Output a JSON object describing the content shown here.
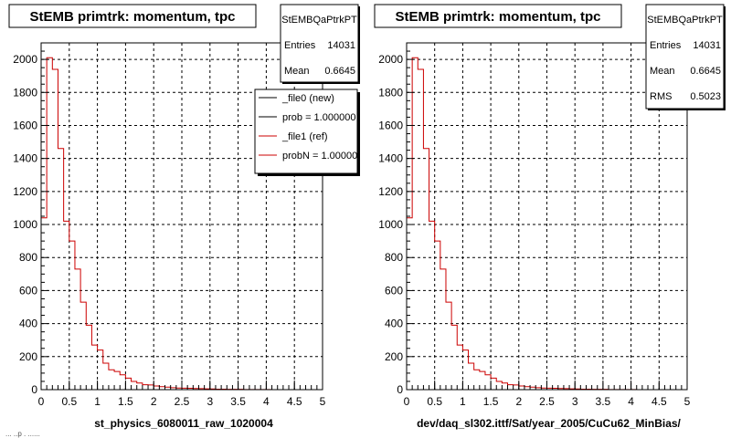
{
  "colors": {
    "hist": "#cc0000",
    "legend_line_new": "#000000",
    "legend_line_ref": "#cc0000",
    "frame": "#000000",
    "grid": "#000000",
    "stats_shadow": "#000000"
  },
  "corner_note": "... ..p . ......",
  "chart_data": [
    {
      "type": "bar",
      "title": "StEMB primtrk: momentum, tpc",
      "xlabel": "st_physics_6080011_raw_1020004",
      "ylabel": "",
      "xlim": [
        0,
        5
      ],
      "ylim": [
        0,
        2100
      ],
      "grid": true,
      "bin_width": 0.1,
      "x_ticks": [
        "0",
        "0.5",
        "1",
        "1.5",
        "2",
        "2.5",
        "3",
        "3.5",
        "4",
        "4.5",
        "5"
      ],
      "y_ticks": [
        "0",
        "200",
        "400",
        "600",
        "800",
        "1000",
        "1200",
        "1400",
        "1600",
        "1800",
        "2000"
      ],
      "values": [
        1040,
        2010,
        1940,
        1460,
        1020,
        900,
        730,
        530,
        390,
        270,
        240,
        160,
        120,
        110,
        90,
        70,
        50,
        40,
        30,
        28,
        22,
        18,
        15,
        12,
        10,
        9,
        8,
        7,
        6,
        5,
        4,
        3,
        3,
        2,
        2,
        2,
        1,
        1,
        1,
        1,
        1,
        0,
        0,
        0,
        0,
        0,
        0,
        0,
        0,
        0
      ],
      "stats": {
        "name": "StEMBQaPtrkPT",
        "entries_label": "Entries",
        "entries": "14031",
        "mean_label": "Mean",
        "mean": "0.6645"
      },
      "legend": [
        {
          "label": "_file0 (new)",
          "color": "#000000"
        },
        {
          "label": "prob = 1.000000",
          "color": "#000000"
        },
        {
          "label": "_file1 (ref)",
          "color": "#cc0000"
        },
        {
          "label": "probN = 1.000000",
          "color": "#cc0000"
        }
      ]
    },
    {
      "type": "bar",
      "title": "StEMB primtrk: momentum, tpc",
      "xlabel": "dev/daq_sl302.ittf/Sat/year_2005/CuCu62_MinBias/",
      "ylabel": "",
      "xlim": [
        0,
        5
      ],
      "ylim": [
        0,
        2100
      ],
      "grid": true,
      "bin_width": 0.1,
      "x_ticks": [
        "0",
        "0.5",
        "1",
        "1.5",
        "2",
        "2.5",
        "3",
        "3.5",
        "4",
        "4.5",
        "5"
      ],
      "y_ticks": [
        "0",
        "200",
        "400",
        "600",
        "800",
        "1000",
        "1200",
        "1400",
        "1600",
        "1800",
        "2000"
      ],
      "values": [
        1040,
        2010,
        1940,
        1460,
        1020,
        900,
        730,
        530,
        390,
        270,
        240,
        160,
        120,
        110,
        90,
        70,
        50,
        40,
        30,
        28,
        22,
        18,
        15,
        12,
        10,
        9,
        8,
        7,
        6,
        5,
        4,
        3,
        3,
        2,
        2,
        2,
        1,
        1,
        1,
        1,
        1,
        0,
        0,
        0,
        0,
        0,
        0,
        0,
        0,
        0
      ],
      "stats": {
        "name": "StEMBQaPtrkPT",
        "entries_label": "Entries",
        "entries": "14031",
        "mean_label": "Mean",
        "mean": "0.6645",
        "rms_label": "RMS",
        "rms": "0.5023"
      },
      "legend": []
    }
  ]
}
